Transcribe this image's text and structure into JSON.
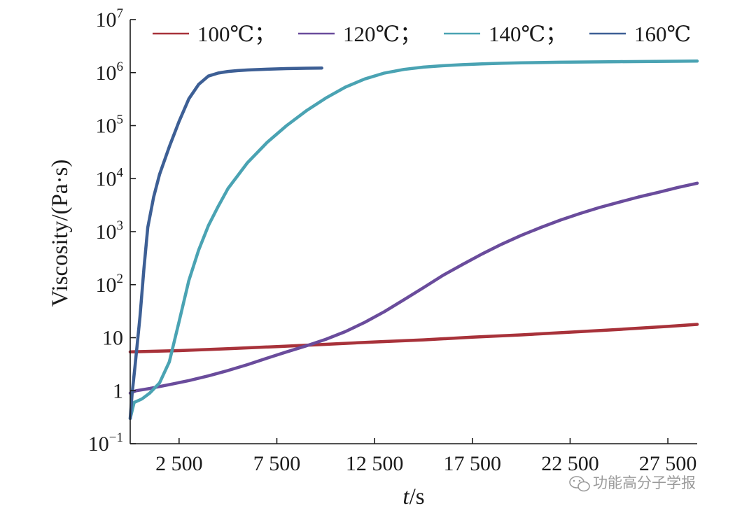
{
  "chart_data": {
    "type": "line",
    "xlabel": {
      "italic": "t",
      "rest": "/s"
    },
    "ylabel": "Viscosity/(Pa·s)",
    "yscale": "log",
    "xlim": [
      0,
      29000
    ],
    "ylim": [
      0.1,
      10000000
    ],
    "x_ticks": [
      {
        "value": 2500,
        "label": "2 500"
      },
      {
        "value": 7500,
        "label": "7 500"
      },
      {
        "value": 12500,
        "label": "12 500"
      },
      {
        "value": 17500,
        "label": "17 500"
      },
      {
        "value": 22500,
        "label": "22 500"
      },
      {
        "value": 27500,
        "label": "27 500"
      }
    ],
    "y_ticks": [
      {
        "value": 0.1,
        "base": "10",
        "exp": "−1"
      },
      {
        "value": 1,
        "base": "1",
        "exp": ""
      },
      {
        "value": 10,
        "base": "10",
        "exp": ""
      },
      {
        "value": 100,
        "base": "10",
        "exp": "2"
      },
      {
        "value": 1000,
        "base": "10",
        "exp": "3"
      },
      {
        "value": 10000,
        "base": "10",
        "exp": "4"
      },
      {
        "value": 100000,
        "base": "10",
        "exp": "5"
      },
      {
        "value": 1000000,
        "base": "10",
        "exp": "6"
      },
      {
        "value": 10000000,
        "base": "10",
        "exp": "7"
      }
    ],
    "legend": {
      "placement": "top",
      "separator": "；"
    },
    "series": [
      {
        "name": "100℃",
        "color": "#a8323a",
        "x": [
          0,
          2500,
          5000,
          7500,
          10000,
          12500,
          15000,
          17500,
          20000,
          22500,
          25000,
          27500,
          29000
        ],
        "y": [
          5.4,
          5.7,
          6.2,
          6.8,
          7.5,
          8.3,
          9.1,
          10.2,
          11.3,
          12.7,
          14.3,
          16.3,
          17.8
        ]
      },
      {
        "name": "120℃",
        "color": "#6a4c9c",
        "x": [
          0,
          300,
          1000,
          2000,
          3000,
          4000,
          5000,
          6000,
          7000,
          8000,
          9000,
          10000,
          11000,
          12000,
          13000,
          14000,
          15000,
          16000,
          17000,
          18000,
          19000,
          20000,
          21000,
          22000,
          23000,
          24000,
          25000,
          26000,
          27000,
          28000,
          29000
        ],
        "y": [
          0.9,
          1.0,
          1.1,
          1.3,
          1.55,
          1.9,
          2.4,
          3.1,
          4.1,
          5.4,
          7.0,
          9.3,
          13.0,
          19.5,
          31,
          52,
          88,
          150,
          240,
          380,
          580,
          850,
          1200,
          1650,
          2200,
          2850,
          3600,
          4500,
          5500,
          6800,
          8200
        ]
      },
      {
        "name": "140℃",
        "color": "#4aa3b3",
        "x": [
          0,
          200,
          600,
          1000,
          1500,
          2000,
          2500,
          3000,
          3500,
          4000,
          4500,
          5000,
          6000,
          7000,
          8000,
          9000,
          10000,
          11000,
          12000,
          13000,
          14000,
          15000,
          16000,
          17000,
          18000,
          19000,
          20000,
          22000,
          25000,
          28000,
          29000
        ],
        "y": [
          0.3,
          0.6,
          0.7,
          0.9,
          1.4,
          3.5,
          20,
          120,
          450,
          1300,
          3000,
          6500,
          20000,
          48000,
          100000,
          190000,
          330000,
          530000,
          760000,
          980000,
          1150000,
          1270000,
          1350000,
          1410000,
          1460000,
          1500000,
          1530000,
          1570000,
          1610000,
          1640000,
          1650000
        ]
      },
      {
        "name": "160℃",
        "color": "#3d5f95",
        "x": [
          0,
          100,
          250,
          500,
          700,
          900,
          1200,
          1500,
          2000,
          2500,
          3000,
          3500,
          4000,
          4500,
          5000,
          5500,
          6000,
          7000,
          8000,
          9000,
          9800
        ],
        "y": [
          0.3,
          0.9,
          3,
          25,
          200,
          1200,
          4500,
          12000,
          40000,
          120000,
          320000,
          600000,
          860000,
          980000,
          1050000,
          1090000,
          1120000,
          1160000,
          1190000,
          1210000,
          1220000
        ]
      }
    ]
  },
  "watermark": {
    "text": "功能高分子学报",
    "icon": "wechat-icon"
  }
}
